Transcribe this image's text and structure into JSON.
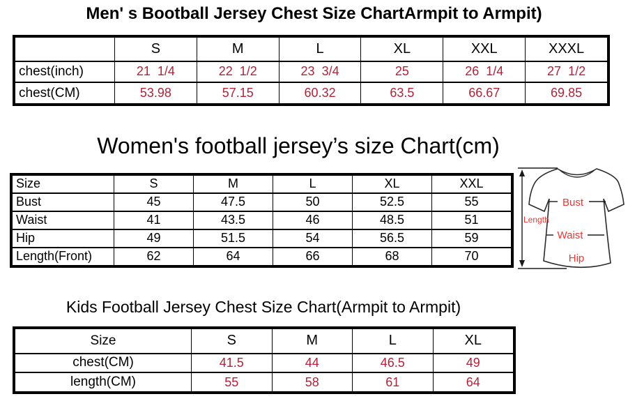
{
  "colors": {
    "table_value_red": "#b02339",
    "diagram_red": "#e53935",
    "text_black": "#000000",
    "background": "#ffffff"
  },
  "chart_data": [
    {
      "type": "table",
      "title": "Men' s Bootball Jersey Chest Size ChartArmpit to Armpit)",
      "columns": [
        "",
        "S",
        "M",
        "L",
        "XL",
        "XXL",
        "XXXL"
      ],
      "rows": [
        {
          "label": "chest(inch)",
          "values": [
            "21  1/4",
            "22  1/2",
            "23  3/4",
            "25",
            "26  1/4",
            "27  1/2"
          ]
        },
        {
          "label": "chest(CM)",
          "values": [
            "53.98",
            "57.15",
            "60.32",
            "63.5",
            "66.67",
            "69.85"
          ]
        }
      ]
    },
    {
      "type": "table",
      "title": "Women's football jersey’s size Chart(cm)",
      "columns": [
        "Size",
        "S",
        "M",
        "L",
        "XL",
        "XXL"
      ],
      "rows": [
        {
          "label": "Bust",
          "values": [
            "45",
            "47.5",
            "50",
            "52.5",
            "55"
          ]
        },
        {
          "label": "Waist",
          "values": [
            "41",
            "43.5",
            "46",
            "48.5",
            "51"
          ]
        },
        {
          "label": "Hip",
          "values": [
            "49",
            "51.5",
            "54",
            "56.5",
            "59"
          ]
        },
        {
          "label": "Length(Front)",
          "values": [
            "62",
            "64",
            "66",
            "68",
            "70"
          ]
        }
      ]
    },
    {
      "type": "table",
      "title": "Kids Football Jersey Chest Size Chart(Armpit to Armpit)",
      "columns": [
        "Size",
        "S",
        "M",
        "L",
        "XL"
      ],
      "rows": [
        {
          "label": "chest(CM)",
          "values": [
            "41.5",
            "44",
            "46.5",
            "49"
          ]
        },
        {
          "label": "length(CM)",
          "values": [
            "55",
            "58",
            "61",
            "64"
          ]
        }
      ]
    }
  ],
  "diagram": {
    "labels": {
      "length": "Length",
      "bust": "Bust",
      "waist": "Waist",
      "hip": "Hip"
    }
  }
}
